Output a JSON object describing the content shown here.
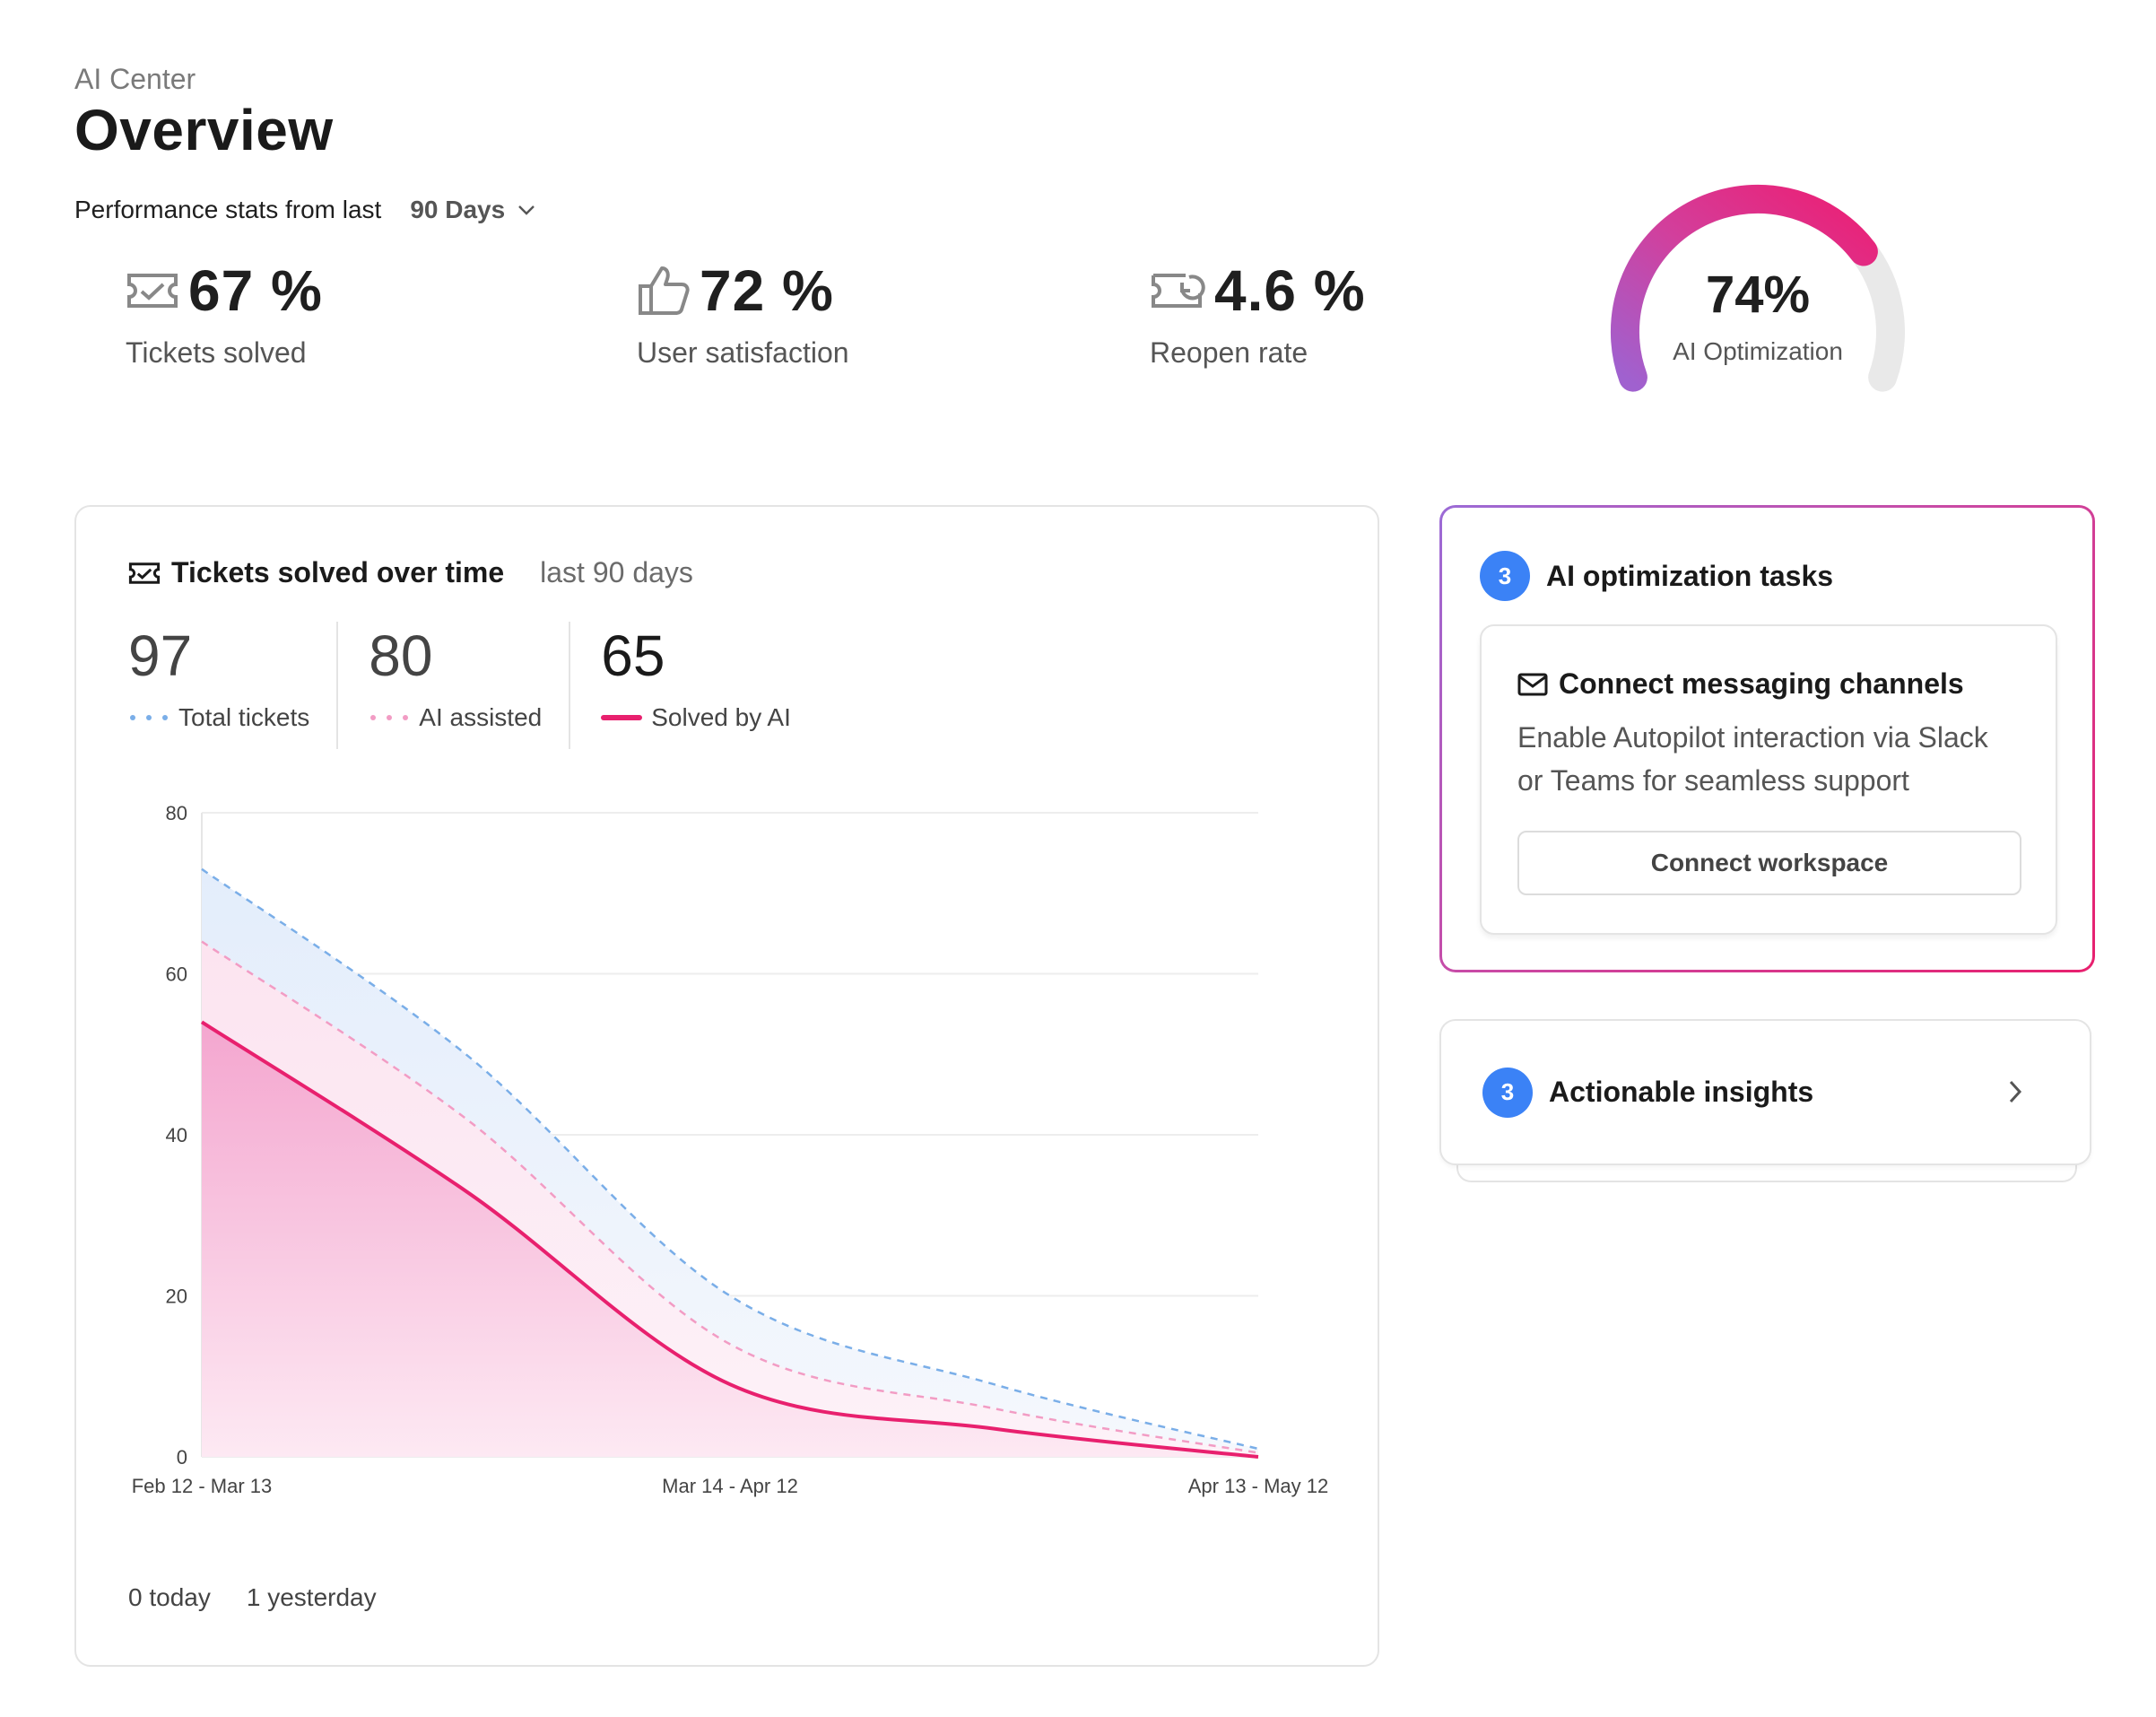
{
  "header": {
    "breadcrumb": "AI Center",
    "title": "Overview",
    "perf_label": "Performance stats from last",
    "range": "90 Days"
  },
  "stats": [
    {
      "icon": "ticket-check-icon",
      "value": "67 %",
      "label": "Tickets solved"
    },
    {
      "icon": "thumbs-up-icon",
      "value": "72 %",
      "label": "User satisfaction"
    },
    {
      "icon": "ticket-reopen-icon",
      "value": "4.6 %",
      "label": "Reopen rate"
    }
  ],
  "gauge": {
    "value": "74%",
    "label": "AI Optimization",
    "fraction": 0.74
  },
  "chart": {
    "title": "Tickets solved over time",
    "subtitle": "last 90 days",
    "metrics": [
      {
        "value": "97",
        "label": "Total tickets",
        "color": "#7aaee8",
        "style": "dotted"
      },
      {
        "value": "80",
        "label": "AI assisted",
        "color": "#f29cc4",
        "style": "dotted"
      },
      {
        "value": "65",
        "label": "Solved by AI",
        "color": "#e8206e",
        "style": "solid"
      }
    ],
    "footer": {
      "today": "0 today",
      "yesterday": "1 yesterday"
    }
  },
  "chart_data": {
    "type": "area",
    "x_ticks": [
      "Feb 12 - Mar 13",
      "Mar 14 - Apr 12",
      "Apr 13 - May 12"
    ],
    "x": [
      0,
      0.25,
      0.5,
      0.75,
      1.0
    ],
    "ylim": [
      0,
      80
    ],
    "y_ticks": [
      0,
      20,
      40,
      60,
      80
    ],
    "grid": true,
    "legend": "top-left",
    "series": [
      {
        "name": "Total tickets",
        "color": "#7aaee8",
        "style": "dashed",
        "values": [
          73,
          50,
          20,
          9,
          1
        ]
      },
      {
        "name": "AI assisted",
        "color": "#f29cc4",
        "style": "dashed",
        "values": [
          64,
          42,
          14,
          6,
          0.5
        ]
      },
      {
        "name": "Solved by AI",
        "color": "#e8206e",
        "style": "solid",
        "values": [
          54,
          33,
          9,
          3.5,
          0
        ]
      }
    ]
  },
  "tasks": {
    "count": "3",
    "title": "AI optimization tasks",
    "item": {
      "icon": "mail-icon",
      "title": "Connect messaging channels",
      "desc_line1": "Enable Autopilot interaction via Slack",
      "desc_line2": "or Teams for seamless support",
      "button": "Connect workspace"
    }
  },
  "insights": {
    "count": "3",
    "title": "Actionable insights"
  }
}
